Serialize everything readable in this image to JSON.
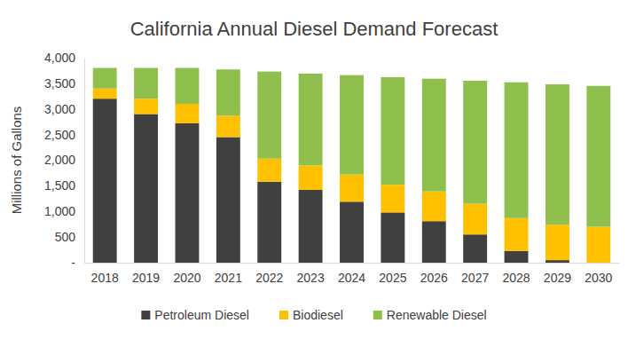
{
  "chart_data": {
    "type": "bar",
    "stacked": true,
    "title": "California Annual Diesel Demand Forecast",
    "y_label": "Millions of Gallons",
    "categories": [
      "2018",
      "2019",
      "2020",
      "2021",
      "2022",
      "2023",
      "2024",
      "2025",
      "2026",
      "2027",
      "2028",
      "2029",
      "2030"
    ],
    "series": [
      {
        "name": "Petroleum Diesel",
        "color": "#404040",
        "values": [
          3200,
          2900,
          2720,
          2450,
          1580,
          1420,
          1190,
          980,
          810,
          550,
          230,
          50,
          0
        ]
      },
      {
        "name": "Biodiesel",
        "color": "#ffc000",
        "values": [
          200,
          300,
          380,
          420,
          450,
          480,
          530,
          540,
          580,
          600,
          640,
          690,
          700
        ]
      },
      {
        "name": "Renewable Diesel",
        "color": "#8fbf4d",
        "values": [
          400,
          600,
          700,
          900,
          1700,
          1790,
          1940,
          2100,
          2200,
          2400,
          2650,
          2740,
          2750
        ]
      }
    ],
    "ylim": [
      0,
      4000
    ],
    "yticks": [
      {
        "value": 0,
        "label": "-"
      },
      500,
      {
        "value": 1000,
        "label": "1,000"
      },
      {
        "value": 1500,
        "label": "1,500"
      },
      {
        "value": 2000,
        "label": "2,000"
      },
      {
        "value": 2500,
        "label": "2,500"
      },
      {
        "value": 3000,
        "label": "3,000"
      },
      {
        "value": 3500,
        "label": "3,500"
      },
      {
        "value": 4000,
        "label": "4,000"
      }
    ],
    "grid": false,
    "legend": "bottom"
  }
}
